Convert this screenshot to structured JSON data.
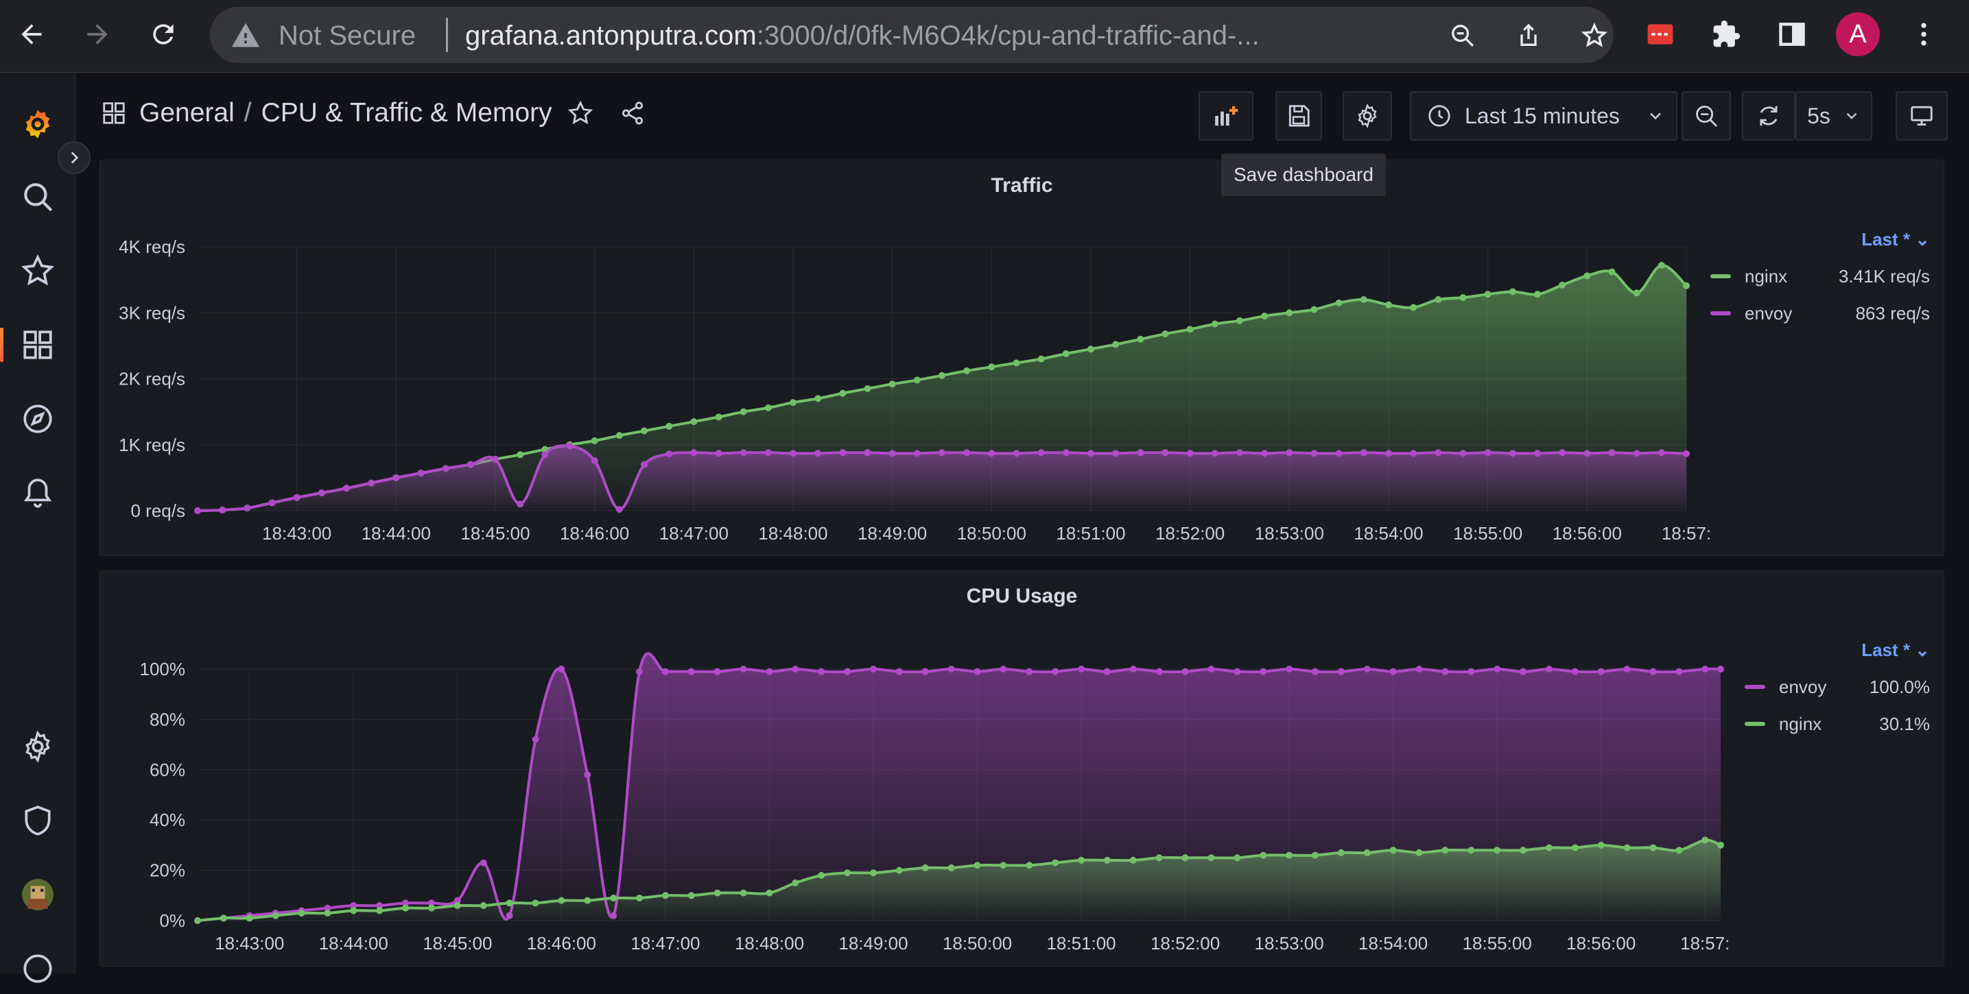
{
  "browser": {
    "security_label": "Not Secure",
    "url_host": "grafana.antonputra.com",
    "url_path": ":3000/d/0fk-M6O4k/cpu-and-traffic-and-...",
    "profile_initial": "A"
  },
  "dashboard": {
    "folder": "General",
    "separator": "/",
    "title": "CPU & Traffic & Memory",
    "time_range": "Last 15 minutes",
    "refresh_interval": "5s",
    "tooltip": "Save dashboard"
  },
  "colors": {
    "nginx": "#73bf69",
    "envoy": "#b04ac8",
    "accent": "#ff8833"
  },
  "panels": {
    "traffic": {
      "title": "Traffic",
      "legend_header": "Last * ⌄",
      "legend": [
        {
          "name": "nginx",
          "value": "3.41K req/s"
        },
        {
          "name": "envoy",
          "value": "863 req/s"
        }
      ]
    },
    "cpu": {
      "title": "CPU Usage",
      "legend_header": "Last * ⌄",
      "legend": [
        {
          "name": "envoy",
          "value": "100.0%"
        },
        {
          "name": "nginx",
          "value": "30.1%"
        }
      ]
    }
  },
  "chart_data": [
    {
      "type": "area",
      "title": "Traffic",
      "x_tick_labels": [
        "18:43:00",
        "18:44:00",
        "18:45:00",
        "18:46:00",
        "18:47:00",
        "18:48:00",
        "18:49:00",
        "18:50:00",
        "18:51:00",
        "18:52:00",
        "18:53:00",
        "18:54:00",
        "18:55:00",
        "18:56:00",
        "18:57:"
      ],
      "y_tick_labels": [
        "0 req/s",
        "1K req/s",
        "2K req/s",
        "3K req/s",
        "4K req/s"
      ],
      "ylim": [
        0,
        4000
      ],
      "x_minutes_range": [
        42.0,
        57.0
      ],
      "series": [
        {
          "name": "nginx",
          "x": [
            42.0,
            42.25,
            42.5,
            42.75,
            43.0,
            43.25,
            43.5,
            43.75,
            44.0,
            44.25,
            44.5,
            44.75,
            45.0,
            45.25,
            45.5,
            45.75,
            46.0,
            46.25,
            46.5,
            46.75,
            47.0,
            47.25,
            47.5,
            47.75,
            48.0,
            48.25,
            48.5,
            48.75,
            49.0,
            49.25,
            49.5,
            49.75,
            50.0,
            50.25,
            50.5,
            50.75,
            51.0,
            51.25,
            51.5,
            51.75,
            52.0,
            52.25,
            52.5,
            52.75,
            53.0,
            53.25,
            53.5,
            53.75,
            54.0,
            54.25,
            54.5,
            54.75,
            55.0,
            55.25,
            55.5,
            55.75,
            56.0,
            56.25,
            56.5,
            56.75,
            57.0
          ],
          "values": [
            0,
            10,
            40,
            120,
            200,
            270,
            340,
            420,
            500,
            570,
            640,
            700,
            780,
            850,
            930,
            1000,
            1060,
            1140,
            1210,
            1280,
            1350,
            1420,
            1500,
            1560,
            1640,
            1700,
            1780,
            1850,
            1920,
            1980,
            2050,
            2120,
            2180,
            2240,
            2300,
            2380,
            2450,
            2520,
            2600,
            2680,
            2750,
            2830,
            2880,
            2950,
            3000,
            3050,
            3150,
            3200,
            3120,
            3080,
            3200,
            3230,
            3280,
            3320,
            3280,
            3420,
            3560,
            3620,
            3300,
            3720,
            3410
          ]
        },
        {
          "name": "envoy",
          "x": [
            42.0,
            42.25,
            42.5,
            42.75,
            43.0,
            43.25,
            43.5,
            43.75,
            44.0,
            44.25,
            44.5,
            44.75,
            45.0,
            45.25,
            45.5,
            45.75,
            46.0,
            46.25,
            46.5,
            46.75,
            47.0,
            47.25,
            47.5,
            47.75,
            48.0,
            48.25,
            48.5,
            48.75,
            49.0,
            49.25,
            49.5,
            49.75,
            50.0,
            50.25,
            50.5,
            50.75,
            51.0,
            51.25,
            51.5,
            51.75,
            52.0,
            52.25,
            52.5,
            52.75,
            53.0,
            53.25,
            53.5,
            53.75,
            54.0,
            54.25,
            54.5,
            54.75,
            55.0,
            55.25,
            55.5,
            55.75,
            56.0,
            56.25,
            56.5,
            56.75,
            57.0
          ],
          "values": [
            0,
            10,
            40,
            120,
            200,
            270,
            340,
            420,
            500,
            570,
            640,
            700,
            780,
            100,
            850,
            980,
            760,
            20,
            700,
            860,
            880,
            870,
            880,
            880,
            870,
            870,
            880,
            880,
            870,
            870,
            880,
            880,
            870,
            870,
            880,
            880,
            870,
            870,
            880,
            880,
            870,
            870,
            880,
            870,
            880,
            870,
            870,
            880,
            870,
            870,
            880,
            870,
            880,
            870,
            870,
            880,
            870,
            880,
            870,
            880,
            863
          ]
        }
      ]
    },
    {
      "type": "area",
      "title": "CPU Usage",
      "x_tick_labels": [
        "18:43:00",
        "18:44:00",
        "18:45:00",
        "18:46:00",
        "18:47:00",
        "18:48:00",
        "18:49:00",
        "18:50:00",
        "18:51:00",
        "18:52:00",
        "18:53:00",
        "18:54:00",
        "18:55:00",
        "18:56:00",
        "18:57:"
      ],
      "y_tick_labels": [
        "0%",
        "20%",
        "40%",
        "60%",
        "80%",
        "100%"
      ],
      "ylim": [
        0,
        100
      ],
      "x_minutes_range": [
        42.5,
        57.15
      ],
      "series": [
        {
          "name": "envoy",
          "x": [
            42.5,
            42.75,
            43.0,
            43.25,
            43.5,
            43.75,
            44.0,
            44.25,
            44.5,
            44.75,
            45.0,
            45.25,
            45.5,
            45.75,
            46.0,
            46.25,
            46.5,
            46.75,
            47.0,
            47.25,
            47.5,
            47.75,
            48.0,
            48.25,
            48.5,
            48.75,
            49.0,
            49.25,
            49.5,
            49.75,
            50.0,
            50.25,
            50.5,
            50.75,
            51.0,
            51.25,
            51.5,
            51.75,
            52.0,
            52.25,
            52.5,
            52.75,
            53.0,
            53.25,
            53.5,
            53.75,
            54.0,
            54.25,
            54.5,
            54.75,
            55.0,
            55.25,
            55.5,
            55.75,
            56.0,
            56.25,
            56.5,
            56.75,
            57.0,
            57.15
          ],
          "values": [
            0,
            1,
            2,
            3,
            4,
            5,
            6,
            6,
            7,
            7,
            8,
            23,
            2,
            72,
            100,
            58,
            2,
            99,
            99,
            99,
            99,
            100,
            99,
            100,
            99,
            99,
            100,
            99,
            99,
            100,
            99,
            100,
            99,
            99,
            100,
            99,
            100,
            99,
            99,
            100,
            99,
            99,
            100,
            99,
            99,
            100,
            99,
            100,
            99,
            99,
            100,
            99,
            100,
            99,
            99,
            100,
            99,
            99,
            100,
            100
          ]
        },
        {
          "name": "nginx",
          "x": [
            42.5,
            42.75,
            43.0,
            43.25,
            43.5,
            43.75,
            44.0,
            44.25,
            44.5,
            44.75,
            45.0,
            45.25,
            45.5,
            45.75,
            46.0,
            46.25,
            46.5,
            46.75,
            47.0,
            47.25,
            47.5,
            47.75,
            48.0,
            48.25,
            48.5,
            48.75,
            49.0,
            49.25,
            49.5,
            49.75,
            50.0,
            50.25,
            50.5,
            50.75,
            51.0,
            51.25,
            51.5,
            51.75,
            52.0,
            52.25,
            52.5,
            52.75,
            53.0,
            53.25,
            53.5,
            53.75,
            54.0,
            54.25,
            54.5,
            54.75,
            55.0,
            55.25,
            55.5,
            55.75,
            56.0,
            56.25,
            56.5,
            56.75,
            57.0,
            57.15
          ],
          "values": [
            0,
            1,
            1,
            2,
            3,
            3,
            4,
            4,
            5,
            5,
            6,
            6,
            7,
            7,
            8,
            8,
            9,
            9,
            10,
            10,
            11,
            11,
            11,
            15,
            18,
            19,
            19,
            20,
            21,
            21,
            22,
            22,
            22,
            23,
            24,
            24,
            24,
            25,
            25,
            25,
            25,
            26,
            26,
            26,
            27,
            27,
            28,
            27,
            28,
            28,
            28,
            28,
            29,
            29,
            30,
            29,
            29,
            28,
            32,
            30
          ]
        }
      ]
    }
  ]
}
